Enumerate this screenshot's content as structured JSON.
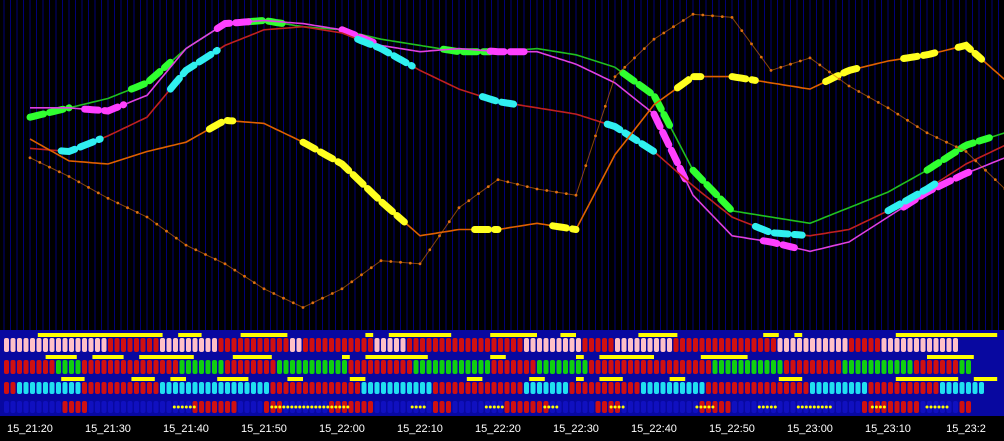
{
  "chart_data": {
    "type": "line",
    "title": "",
    "xlabel": "",
    "ylabel": "",
    "x_tick_labels": [
      "15_21:20",
      "15_21:30",
      "15_21:40",
      "15_21:50",
      "15_22:00",
      "15_22:10",
      "15_22:20",
      "15_22:30",
      "15_22:40",
      "15_22:50",
      "15_23:00",
      "15_23:10",
      "15_23:2"
    ],
    "x_range": [
      0,
      12.5
    ],
    "y_range": [
      0,
      100
    ],
    "grid": true,
    "legend": "none",
    "colors": {
      "background": "#000000",
      "grid": "#0000a0",
      "tick_text": "#ffffff",
      "bar_red": "#d01010",
      "bar_pink": "#ffc0c8",
      "bar_green": "#10d010",
      "bar_cyan": "#20e0f0",
      "bar_blue": "#1010c0",
      "bar_yellow": "#ffff00"
    },
    "series": [
      {
        "color": "#20c020",
        "x": [
          0,
          0.5,
          1,
          1.5,
          2,
          2.5,
          3,
          3.5,
          4,
          4.5,
          5,
          5.5,
          6,
          6.5,
          7,
          7.5,
          8,
          8.5,
          9,
          9.5,
          10,
          10.5,
          11,
          11.5,
          12,
          12.5
        ],
        "y": [
          65,
          68,
          71,
          76,
          87,
          95,
          96,
          94,
          93,
          90,
          88,
          86,
          86,
          87,
          85,
          81,
          72,
          48,
          35,
          33,
          31,
          36,
          41,
          48,
          56,
          60
        ],
        "highlight": [
          [
            0,
            0.5
          ],
          [
            1.3,
            1.8
          ],
          [
            2.8,
            3.3
          ],
          [
            5.3,
            5.9
          ],
          [
            7.6,
            8.2
          ],
          [
            8.5,
            9.0
          ],
          [
            11.5,
            12.3
          ]
        ],
        "highlight_color": "#30ff30"
      },
      {
        "color": "#e040e0",
        "x": [
          0,
          0.5,
          1,
          1.5,
          2,
          2.5,
          3,
          3.5,
          4,
          4.5,
          5,
          5.5,
          6,
          6.5,
          7,
          7.5,
          8,
          8.5,
          9,
          9.5,
          10,
          10.5,
          11,
          11.5,
          12,
          12.5
        ],
        "y": [
          68,
          68,
          67,
          72,
          87,
          95,
          96,
          95,
          93,
          88,
          86,
          87,
          86,
          86,
          82,
          76,
          66,
          40,
          27,
          25,
          22,
          25,
          33,
          41,
          47,
          52
        ],
        "highlight": [
          [
            0.7,
            1.2
          ],
          [
            2.4,
            2.8
          ],
          [
            4.0,
            4.4
          ],
          [
            5.9,
            6.4
          ],
          [
            8.0,
            8.4
          ],
          [
            9.4,
            9.8
          ],
          [
            11.2,
            12.1
          ]
        ],
        "highlight_color": "#ff40ff"
      },
      {
        "color": "#c02020",
        "x": [
          0,
          0.5,
          1,
          1.5,
          2,
          2.5,
          3,
          3.5,
          4,
          4.5,
          5,
          5.5,
          6,
          6.5,
          7,
          7.5,
          8,
          8.5,
          9,
          9.5,
          10,
          10.5,
          11,
          11.5,
          12,
          12.5
        ],
        "y": [
          55,
          54,
          59,
          65,
          80,
          88,
          93,
          94,
          92,
          87,
          80,
          74,
          70,
          68,
          66,
          62,
          54,
          43,
          33,
          28,
          27,
          29,
          35,
          42,
          50,
          56
        ],
        "highlight": [
          [
            0.4,
            0.9
          ],
          [
            1.8,
            2.4
          ],
          [
            4.2,
            4.9
          ],
          [
            5.8,
            6.2
          ],
          [
            7.4,
            8.0
          ],
          [
            9.3,
            9.9
          ],
          [
            11.0,
            11.6
          ]
        ],
        "highlight_color": "#30f0f0"
      },
      {
        "color": "#e06000",
        "x": [
          0,
          0.5,
          1,
          1.5,
          2,
          2.5,
          3,
          3.5,
          4,
          4.5,
          5,
          5.5,
          6,
          6.5,
          7,
          7.5,
          8,
          8.5,
          9,
          9.5,
          10,
          10.5,
          11,
          11.5,
          12,
          12.5
        ],
        "y": [
          58,
          51,
          50,
          54,
          57,
          64,
          63,
          57,
          50,
          38,
          27,
          29,
          29,
          31,
          29,
          53,
          69,
          78,
          78,
          76,
          74,
          80,
          83,
          85,
          88,
          77
        ],
        "highlight": [
          [
            2.3,
            2.6
          ],
          [
            3.5,
            4.8
          ],
          [
            5.7,
            6.0
          ],
          [
            6.7,
            7.0
          ],
          [
            8.3,
            8.6
          ],
          [
            9.0,
            9.3
          ],
          [
            10.2,
            10.6
          ],
          [
            11.2,
            11.6
          ],
          [
            11.9,
            12.2
          ]
        ],
        "highlight_color": "#ffff20"
      },
      {
        "color": "#e07010",
        "dotted": true,
        "x": [
          0,
          0.5,
          1,
          1.5,
          2,
          2.5,
          3,
          3.5,
          4,
          4.5,
          5,
          5.5,
          6,
          6.5,
          7,
          7.5,
          8,
          8.5,
          9,
          9.5,
          10,
          10.5,
          11,
          11.5,
          12,
          12.5
        ],
        "y": [
          52,
          46,
          39,
          33,
          24,
          18,
          10,
          4,
          10,
          19,
          18,
          36,
          45,
          42,
          40,
          78,
          90,
          98,
          97,
          80,
          84,
          75,
          68,
          60,
          54,
          42
        ]
      }
    ],
    "indicator_rows": [
      {
        "colors": [
          "pink",
          "red"
        ],
        "pattern": "pppppppppppppppprrrrrrrrppppppppprrrrrrrrrrrpprrrrrrrrrrrppppprrrrrrrrrrrrrrrrrrppppppppprrrrrppppppppprrrrrrrrrrrrrrrrppppppppppprrrrrpppppppppppp",
        "yellow_segments": [
          [
            0.1,
            1.7
          ],
          [
            1.9,
            2.2
          ],
          [
            2.7,
            3.3
          ],
          [
            4.3,
            4.4
          ],
          [
            4.6,
            5.4
          ],
          [
            5.9,
            6.5
          ],
          [
            6.8,
            7.0
          ],
          [
            7.8,
            8.3
          ],
          [
            9.4,
            9.6
          ],
          [
            9.8,
            9.9
          ],
          [
            11.1,
            12.4
          ]
        ]
      },
      {
        "colors": [
          "red",
          "green"
        ],
        "pattern": "rrrrrrrrggggrrrrrrrrrrrrrrrgggggggrrrrrrrrgggggggggggrrrrrrrrrrggggggggggggrrrrrrrggggggggrrrrrrrrrrrrrrrrrrrgggggggggggrrrrrrrrrgggggggggggrrrrrrrgg",
        "yellow_segments": [
          [
            0.2,
            0.6
          ],
          [
            0.8,
            1.2
          ],
          [
            1.4,
            2.1
          ],
          [
            2.6,
            3.1
          ],
          [
            4.0,
            4.1
          ],
          [
            4.3,
            5.1
          ],
          [
            5.9,
            6.1
          ],
          [
            7.0,
            7.1
          ],
          [
            7.3,
            8.0
          ],
          [
            8.6,
            9.2
          ],
          [
            11.5,
            12.1
          ]
        ]
      },
      {
        "colors": [
          "red",
          "cyan"
        ],
        "pattern": "rrccccccccccrrrrrrrrrrrrcccccccccccccccccrrrrrrrrrrrrrrcccccccccccrrrrrrrrrrrrrrcccccccrrrrrrrrrrrccccccccccrrrrrrrrrrrrrrrrcccccccccrrrrrrrrrrrccccccc",
        "yellow_segments": [
          [
            0.4,
            0.7
          ],
          [
            1.3,
            1.6
          ],
          [
            1.8,
            2.0
          ],
          [
            2.4,
            2.8
          ],
          [
            3.3,
            3.5
          ],
          [
            4.1,
            4.3
          ],
          [
            5.6,
            5.8
          ],
          [
            6.4,
            6.6
          ],
          [
            7.0,
            7.1
          ],
          [
            7.3,
            7.6
          ],
          [
            8.2,
            8.4
          ],
          [
            9.6,
            9.9
          ],
          [
            11.1,
            11.9
          ],
          [
            12.1,
            12.4
          ]
        ]
      },
      {
        "colors": [
          "blue",
          "red"
        ],
        "pattern": "bbbbbbbbbrrrrbbbbbbbbbbbbbbbbrrrrrrrbbbbrrrbbbbbbbrrrrrrrbbbbbbbbbrrrbbbbbbbbrrrrrrrbbbbbbbrrrrbbbbbbbbbbbbrrrrrbbbbbbbbbbbbbbbbbbbbrrrrrrrrrbbbbbbrr",
        "dotted_segments": [
          [
            1.85,
            2.15
          ],
          [
            3.1,
            4.1
          ],
          [
            4.9,
            5.1
          ],
          [
            5.85,
            6.1
          ],
          [
            6.6,
            6.8
          ],
          [
            7.45,
            7.65
          ],
          [
            8.55,
            8.8
          ],
          [
            9.35,
            9.6
          ],
          [
            9.85,
            10.3
          ],
          [
            10.8,
            11.0
          ],
          [
            11.5,
            11.8
          ]
        ]
      }
    ]
  }
}
